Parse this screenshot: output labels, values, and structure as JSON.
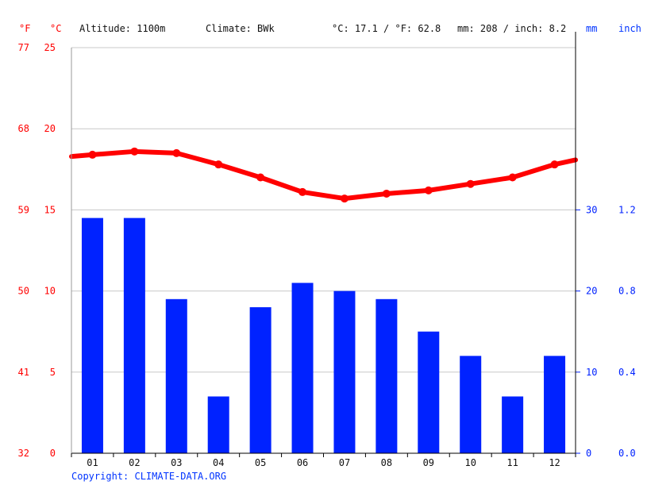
{
  "header": {
    "unit_f": "°F",
    "unit_c": "°C",
    "altitude": "Altitude: 1100m",
    "climate": "Climate: BWk",
    "temp_avg": "°C: 17.1 / °F: 62.8",
    "precip_total": "mm: 208 / inch: 8.2",
    "unit_mm": "mm",
    "unit_inch": "inch"
  },
  "footer": {
    "copyright": "Copyright: CLIMATE-DATA.ORG"
  },
  "colors": {
    "temperature": "#ff0000",
    "precipitation": "#0022ff",
    "grid": "#c8c8c8",
    "axis": "#000000"
  },
  "chart_data": {
    "type": "bar+line",
    "categories": [
      "01",
      "02",
      "03",
      "04",
      "05",
      "06",
      "07",
      "08",
      "09",
      "10",
      "11",
      "12"
    ],
    "series": [
      {
        "type": "bar",
        "axis": "right",
        "values": [
          29,
          29,
          19,
          7,
          18,
          21,
          20,
          19,
          15,
          12,
          7,
          12
        ]
      },
      {
        "type": "line",
        "axis": "left",
        "values": [
          18.4,
          18.6,
          18.5,
          17.8,
          17.0,
          16.1,
          15.7,
          16.0,
          16.2,
          16.6,
          17.0,
          17.8
        ]
      }
    ],
    "left_axis_c": {
      "ticks": [
        "0",
        "5",
        "10",
        "15",
        "20",
        "25"
      ],
      "ylim": [
        0,
        25
      ]
    },
    "left_axis_f": {
      "ticks": [
        "32",
        "41",
        "50",
        "59",
        "68",
        "77"
      ]
    },
    "right_axis_mm": {
      "ticks": [
        "0",
        "10",
        "20",
        "30"
      ],
      "ylim": [
        0,
        50
      ]
    },
    "right_axis_inch": {
      "ticks": [
        "0.0",
        "0.4",
        "0.8",
        "1.2"
      ]
    }
  }
}
